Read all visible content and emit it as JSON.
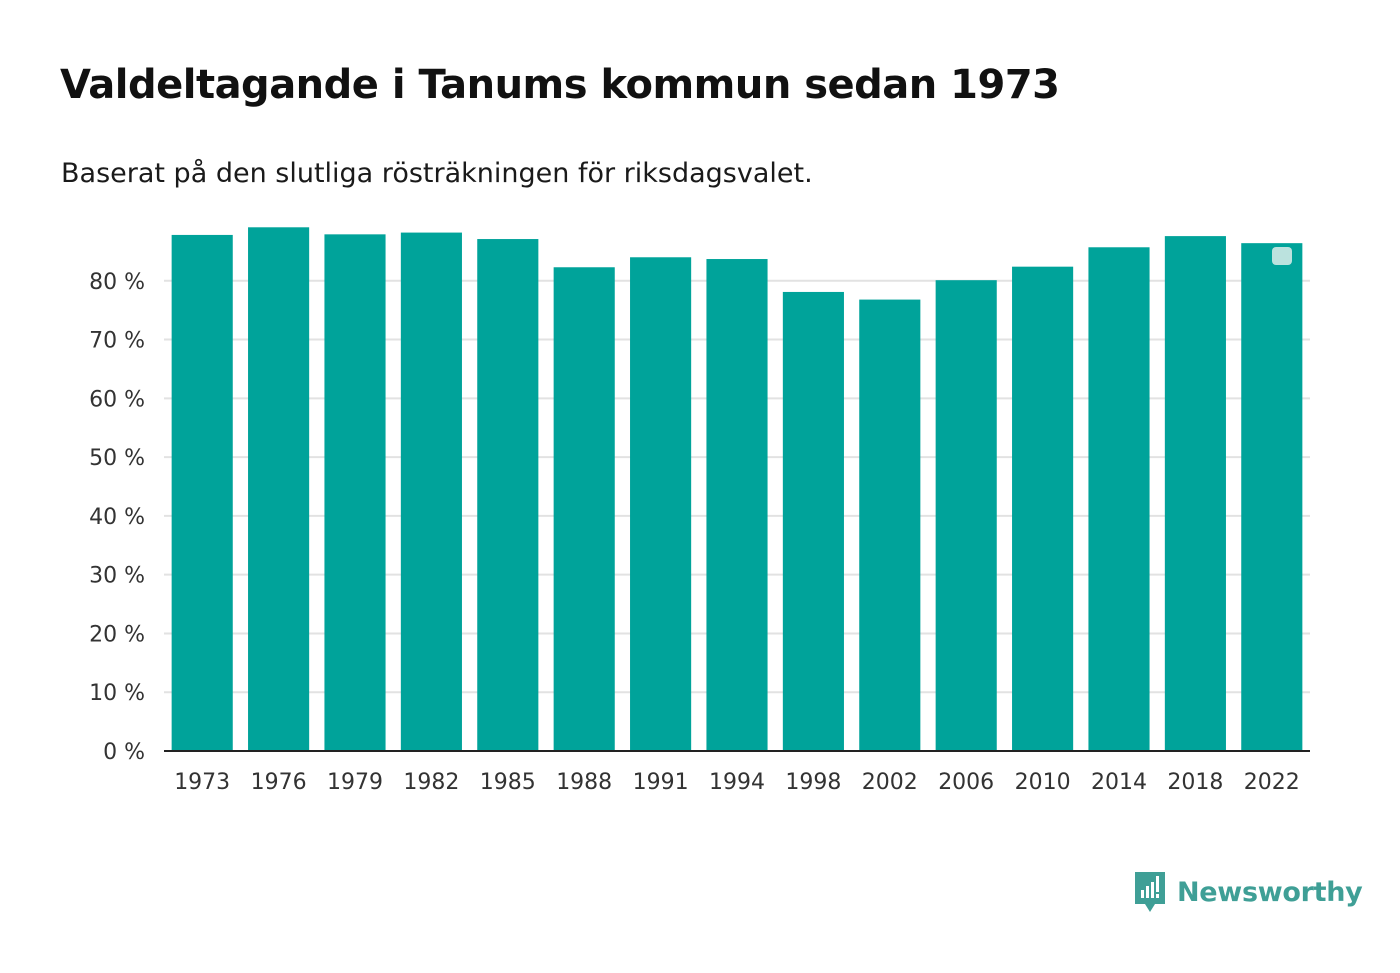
{
  "header": {
    "title": "Valdeltagande i Tanums kommun sedan 1973",
    "subtitle": "Baserat på den slutliga rösträkningen för riksdagsvalet."
  },
  "brand": {
    "name": "Newsworthy",
    "icon": "newsworthy-logo-icon",
    "color": "#3f9f96"
  },
  "colors": {
    "bar": "#00a39a",
    "grid": "#e2e2e2",
    "axis": "#222222"
  },
  "chart_data": {
    "type": "bar",
    "title": "Valdeltagande i Tanums kommun sedan 1973",
    "subtitle": "Baserat på den slutliga rösträkningen för riksdagsvalet.",
    "xlabel": "",
    "ylabel": "",
    "categories": [
      "1973",
      "1976",
      "1979",
      "1982",
      "1985",
      "1988",
      "1991",
      "1994",
      "1998",
      "2002",
      "2006",
      "2010",
      "2014",
      "2018",
      "2022"
    ],
    "values": [
      87.8,
      89.1,
      87.9,
      88.2,
      87.1,
      82.3,
      84.0,
      83.7,
      78.1,
      76.8,
      80.1,
      82.4,
      85.7,
      87.6,
      86.4
    ],
    "ylim": [
      0,
      90
    ],
    "yticks": [
      0,
      10,
      20,
      30,
      40,
      50,
      60,
      70,
      80
    ],
    "ytick_labels": [
      "0 %",
      "10 %",
      "20 %",
      "30 %",
      "40 %",
      "50 %",
      "60 %",
      "70 %",
      "80 %"
    ],
    "grid": true,
    "legend": "none"
  }
}
